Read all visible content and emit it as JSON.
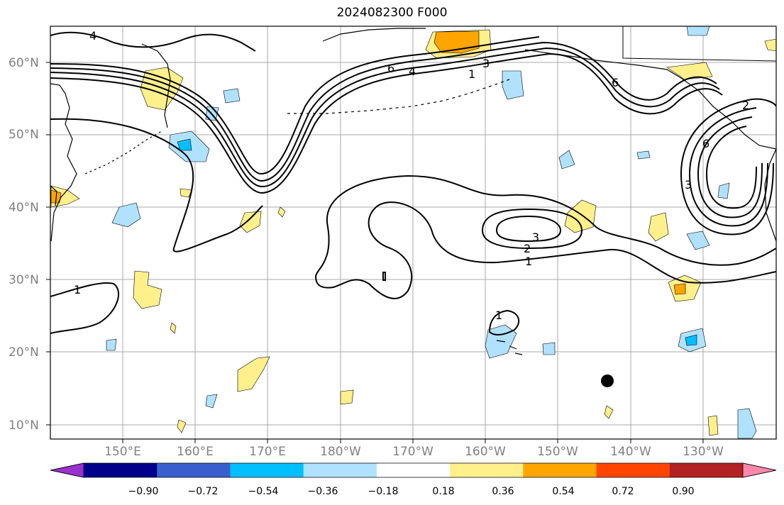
{
  "title": "2024082300 F000",
  "map": {
    "lat_ticks": [
      "60°N",
      "50°N",
      "40°N",
      "30°N",
      "20°N",
      "10°N"
    ],
    "lon_ticks": [
      "150°E",
      "160°E",
      "170°E",
      "180°W",
      "170°W",
      "160°W",
      "150°W",
      "140°W",
      "130°W"
    ],
    "contour_labels": [
      "4",
      "6",
      "4",
      "1",
      "3",
      "6",
      "2",
      "6",
      "3",
      "1",
      "2",
      "3",
      "1",
      "1"
    ],
    "marker": "storm-center-dot"
  },
  "colorbar": {
    "colors": [
      "#9932cc",
      "#00008b",
      "#3a5fcd",
      "#00bfff",
      "#b0e2ff",
      "#ffffff",
      "#fff08c",
      "#ffa500",
      "#ff4500",
      "#b22222",
      "#ff88aa"
    ],
    "labels": [
      "−0.90",
      "−0.72",
      "−0.54",
      "−0.36",
      "−0.18",
      "0.18",
      "0.36",
      "0.54",
      "0.72",
      "0.90"
    ]
  }
}
